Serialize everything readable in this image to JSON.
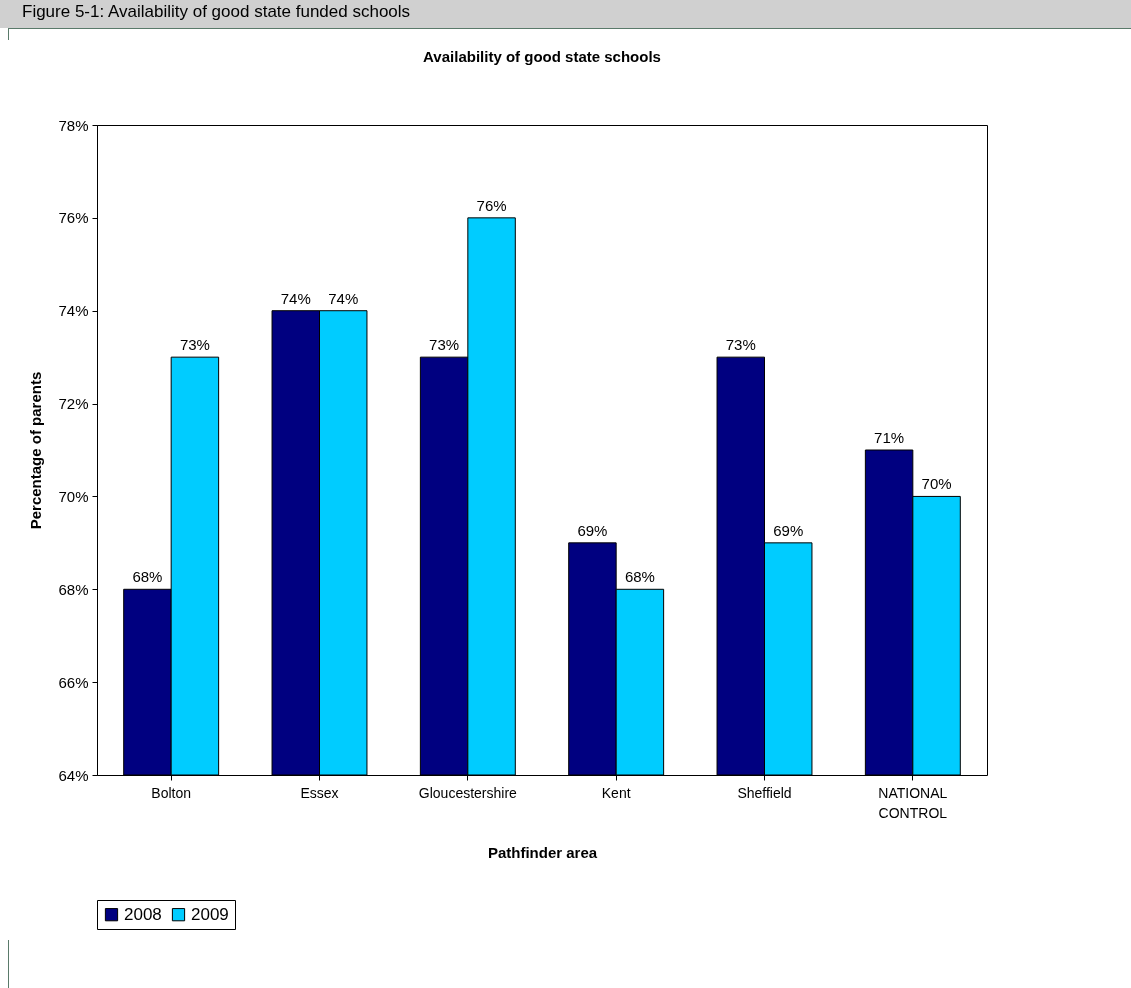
{
  "chart_data": {
    "type": "bar",
    "title": "Availability of good state schools",
    "xlabel": "Pathfinder area",
    "ylabel": "Percentage of parents",
    "annotations": [
      "Figure 5-1: Availability of good state funded schools"
    ],
    "categories": [
      "Bolton",
      "Essex",
      "Gloucestershire",
      "Kent",
      "Sheffield",
      "NATIONAL CONTROL"
    ],
    "series": [
      {
        "name": "2008",
        "color": "#000080",
        "values": [
          68,
          74,
          73,
          69,
          73,
          71
        ],
        "value_labels": [
          "68%",
          "74%",
          "73%",
          "69%",
          "73%",
          "71%"
        ]
      },
      {
        "name": "2009",
        "color": "#00ccff",
        "values": [
          73,
          74,
          76,
          68,
          69,
          70
        ],
        "value_labels": [
          "73%",
          "74%",
          "76%",
          "68%",
          "69%",
          "70%"
        ]
      }
    ],
    "ylim": [
      64,
      78
    ],
    "yticks": [
      {
        "value": 64,
        "label": "64%"
      },
      {
        "value": 66,
        "label": "66%"
      },
      {
        "value": 68,
        "label": "68%"
      },
      {
        "value": 70,
        "label": "70%"
      },
      {
        "value": 72,
        "label": "72%"
      },
      {
        "value": 74,
        "label": "74%"
      },
      {
        "value": 76,
        "label": "76%"
      },
      {
        "value": 78,
        "label": "78%"
      }
    ],
    "grid": false,
    "legend": "bottom"
  }
}
